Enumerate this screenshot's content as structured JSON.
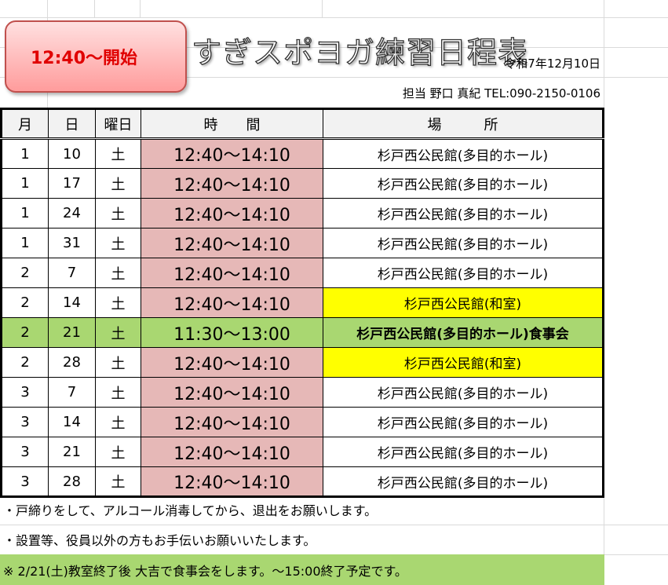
{
  "badge": "12:40〜開始",
  "title": "すぎスポヨガ練習日程表",
  "date": "令和7年12月10日",
  "contact": "担当 野口 真紀 TEL:090-2150-0106",
  "headers": [
    "月",
    "日",
    "曜日",
    "時　　間",
    "場　　　所"
  ],
  "rows": [
    {
      "month": "1",
      "day": "10",
      "weekday": "土",
      "time": "12:40〜14:10",
      "place": "杉戸西公民館(多目的ホール)",
      "highlight": ""
    },
    {
      "month": "1",
      "day": "17",
      "weekday": "土",
      "time": "12:40〜14:10",
      "place": "杉戸西公民館(多目的ホール)",
      "highlight": ""
    },
    {
      "month": "1",
      "day": "24",
      "weekday": "土",
      "time": "12:40〜14:10",
      "place": "杉戸西公民館(多目的ホール)",
      "highlight": ""
    },
    {
      "month": "1",
      "day": "31",
      "weekday": "土",
      "time": "12:40〜14:10",
      "place": "杉戸西公民館(多目的ホール)",
      "highlight": ""
    },
    {
      "month": "2",
      "day": "7",
      "weekday": "土",
      "time": "12:40〜14:10",
      "place": "杉戸西公民館(多目的ホール)",
      "highlight": ""
    },
    {
      "month": "2",
      "day": "14",
      "weekday": "土",
      "time": "12:40〜14:10",
      "place": "杉戸西公民館(和室)",
      "highlight": "yellow"
    },
    {
      "month": "2",
      "day": "21",
      "weekday": "土",
      "time": "11:30〜13:00",
      "place": "杉戸西公民館(多目的ホール)食事会",
      "highlight": "green"
    },
    {
      "month": "2",
      "day": "28",
      "weekday": "土",
      "time": "12:40〜14:10",
      "place": "杉戸西公民館(和室)",
      "highlight": "yellow"
    },
    {
      "month": "3",
      "day": "7",
      "weekday": "土",
      "time": "12:40〜14:10",
      "place": "杉戸西公民館(多目的ホール)",
      "highlight": ""
    },
    {
      "month": "3",
      "day": "14",
      "weekday": "土",
      "time": "12:40〜14:10",
      "place": "杉戸西公民館(多目的ホール)",
      "highlight": ""
    },
    {
      "month": "3",
      "day": "21",
      "weekday": "土",
      "time": "12:40〜14:10",
      "place": "杉戸西公民館(多目的ホール)",
      "highlight": ""
    },
    {
      "month": "3",
      "day": "28",
      "weekday": "土",
      "time": "12:40〜14:10",
      "place": "杉戸西公民館(多目的ホール)",
      "highlight": ""
    }
  ],
  "notes": [
    "・戸締りをして、アルコール消毒してから、退出をお願いします。",
    "・設置等、役員以外の方もお手伝いお願いいたします。",
    "※ 2/21(土)教室終了後 大吉で食事会をします。〜15:00終了予定です。"
  ],
  "colors": {
    "time_bg": "#e6b8b7",
    "yellow": "#ffff00",
    "green": "#a9d771",
    "badge_text": "#e00000"
  }
}
